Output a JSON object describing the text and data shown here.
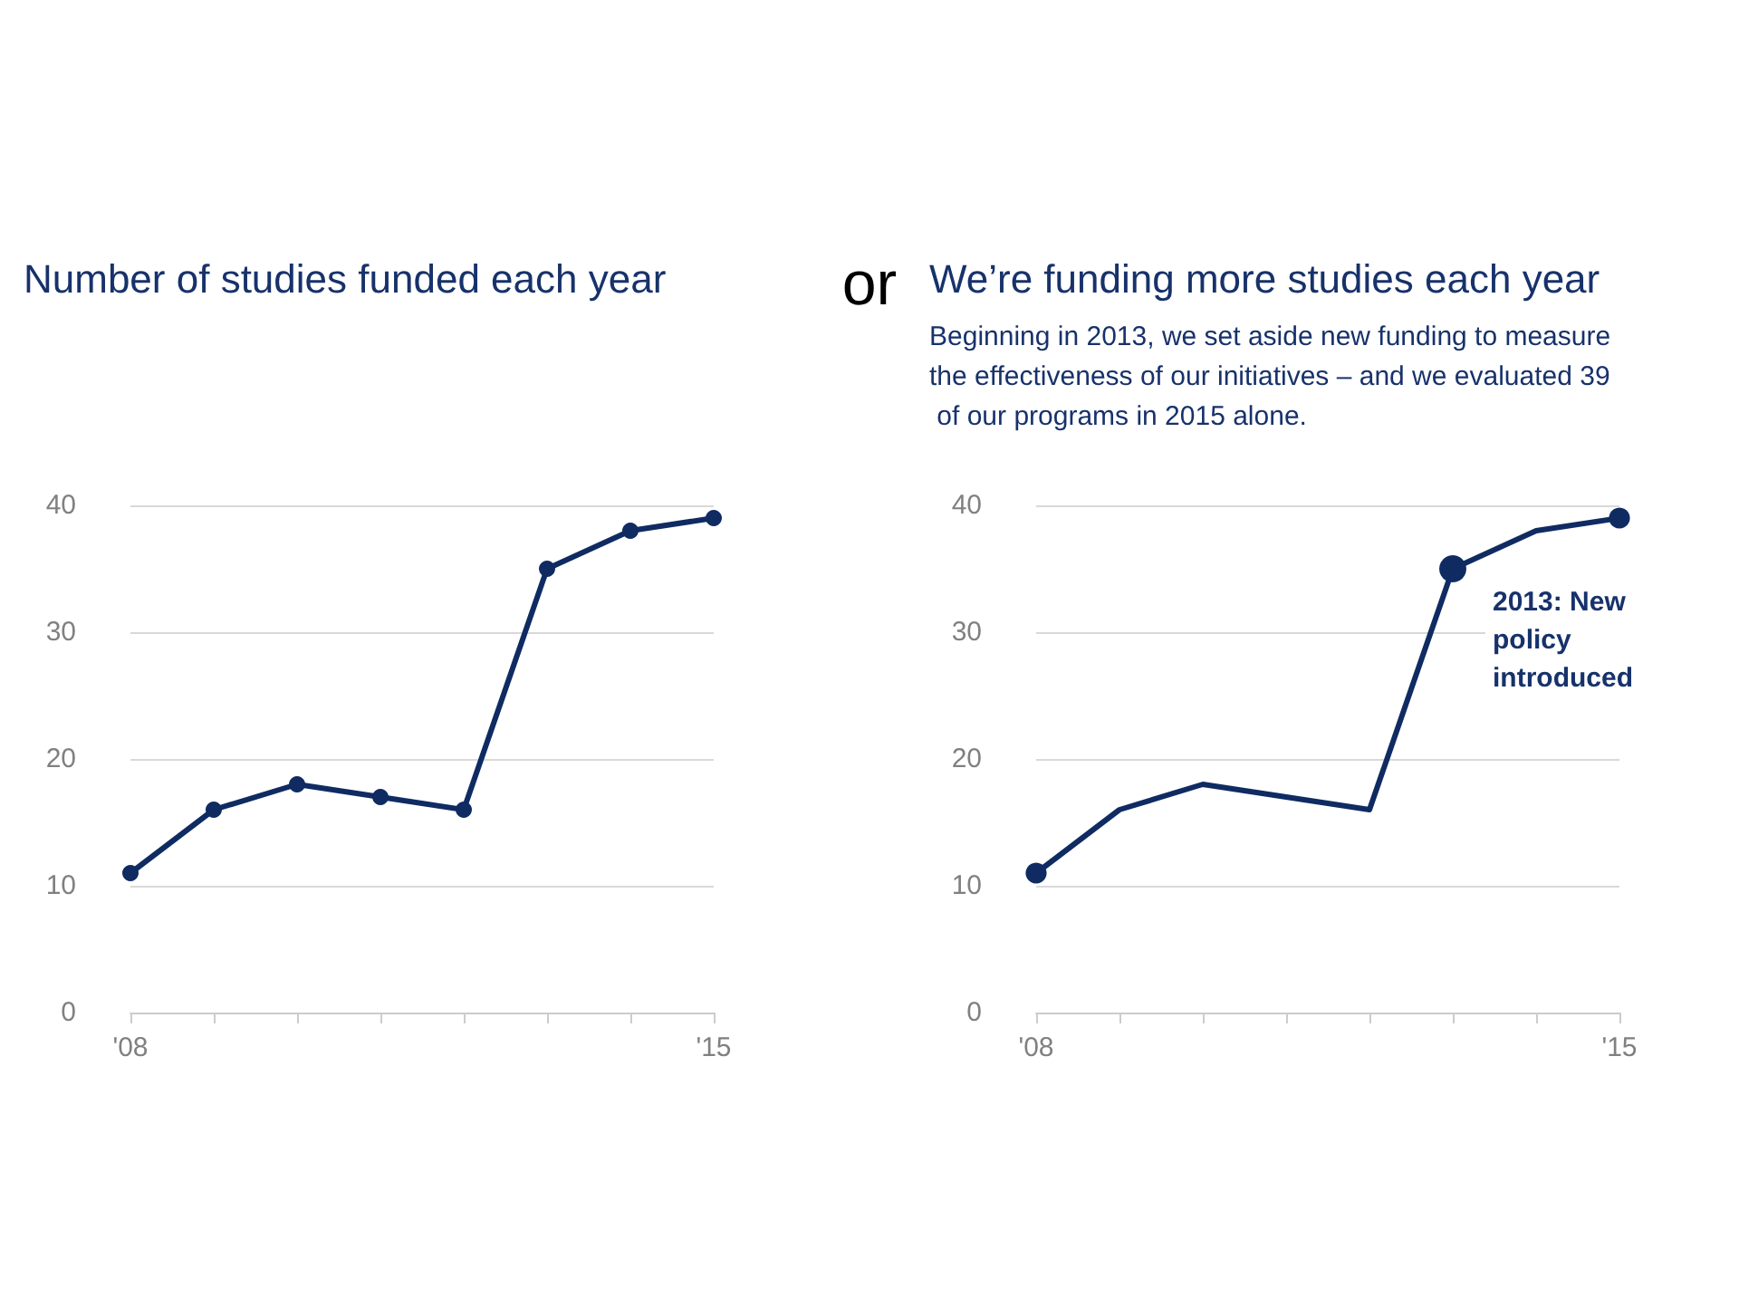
{
  "chart_data": [
    {
      "type": "line",
      "title": "Number of studies funded each year",
      "categories": [
        "'08",
        null,
        null,
        null,
        null,
        null,
        null,
        "'15"
      ],
      "series": [
        {
          "color": "#0f2b62",
          "values": [
            11,
            16,
            18,
            17,
            16,
            35,
            38,
            39
          ]
        }
      ],
      "ylim": [
        0,
        40
      ],
      "yticks": [
        0,
        10,
        20,
        30,
        40
      ],
      "grid": "y",
      "marker": "circle",
      "line_style": "solid"
    },
    {
      "type": "other",
      "title": "or"
    },
    {
      "type": "line",
      "title": "We’re funding more studies each year",
      "subtitle": "Beginning in 2013, we set aside new funding to measure the effectiveness of our initiatives – and we evaluated 39 of our programs in 2015 alone.",
      "categories": [
        "'08",
        null,
        null,
        null,
        null,
        null,
        null,
        "'15"
      ],
      "series": [
        {
          "color": "#0f2b62",
          "values": [
            11,
            16,
            18,
            17,
            16,
            35,
            38,
            39
          ],
          "marker": "none"
        },
        {
          "type": "scatter",
          "color": "#0f2b62",
          "values": [
            11,
            null,
            null,
            null,
            null,
            35,
            null,
            39
          ],
          "sizes": [
            0.6,
            null,
            null,
            null,
            null,
            1,
            null,
            0.6
          ]
        }
      ],
      "ylim": [
        0,
        40
      ],
      "yticks": [
        0,
        10,
        20,
        30,
        40
      ],
      "grid": "y",
      "line_style": "solid",
      "annotations": [
        "2013: New policy introduced"
      ]
    }
  ]
}
